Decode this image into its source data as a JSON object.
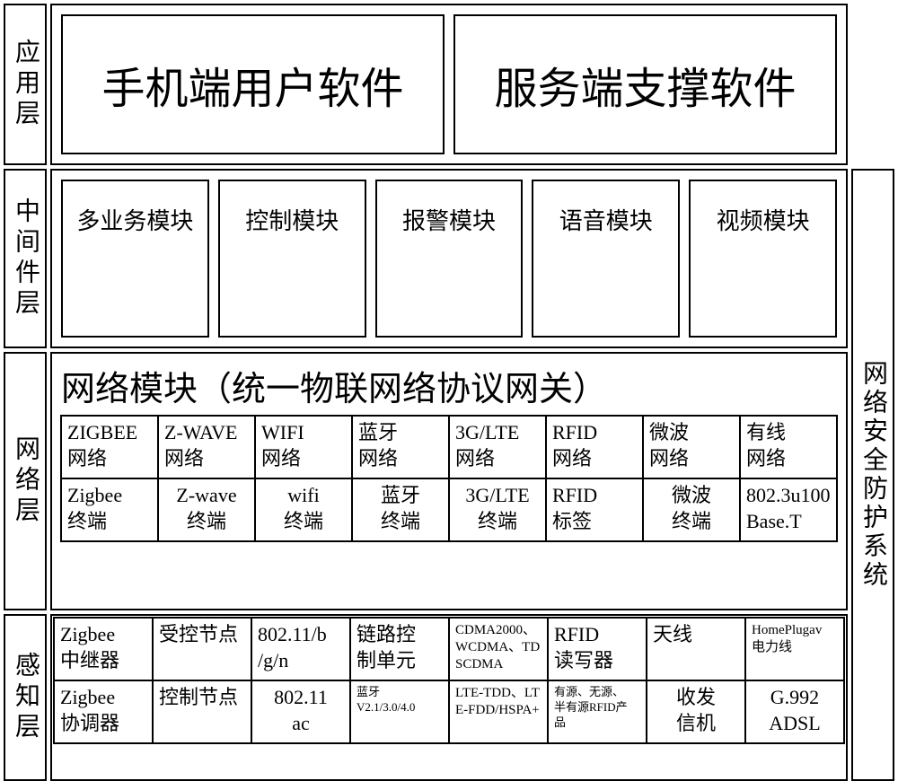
{
  "colors": {
    "border": "#000000",
    "background": "#ffffff"
  },
  "layers": {
    "app_label": "应用层",
    "mid_label": "中间件层",
    "net_label": "网络层",
    "sense_label": "感知层"
  },
  "security_label": "网络安全防护系统",
  "app_layer": {
    "boxes": [
      "手机端用户软件",
      "服务端支撑软件"
    ]
  },
  "middleware": {
    "boxes": [
      "多业务模块",
      "控制模块",
      "报警模块",
      "语音模块",
      "视频模块"
    ]
  },
  "network": {
    "title": "网络模块（统一物联网络协议网关）",
    "row1": [
      "ZIGBEE\n网络",
      "Z-WAVE\n网络",
      "WIFI\n网络",
      "蓝牙\n网络",
      "3G/LTE\n网络",
      "RFID\n网络",
      "微波\n网络",
      "有线\n网络"
    ],
    "row2": [
      "Zigbee\n终端",
      "Z-wave\n终端",
      "wifi\n终端",
      "蓝牙\n终端",
      "3G/LTE\n终端",
      "RFID\n标签",
      "微波\n终端",
      "802.3u100\nBase.T"
    ]
  },
  "perception": {
    "row1": [
      "Zigbee\n中继器",
      "受控节点",
      "802.11/b\n/g/n",
      "链路控\n制单元",
      "CDMA2000、\nWCDMA、TD\nSCDMA",
      "RFID\n读写器",
      "天线",
      "HomePlugav\n电力线"
    ],
    "row2": [
      "Zigbee\n协调器",
      "控制节点",
      "802.11\nac",
      "蓝牙\nV2.1/3.0/4.0",
      "LTE-TDD、LT\nE-FDD/HSPA+",
      "有源、无源、\n半有源RFID产\n品",
      "收发\n信机",
      "G.992\nADSL"
    ]
  }
}
